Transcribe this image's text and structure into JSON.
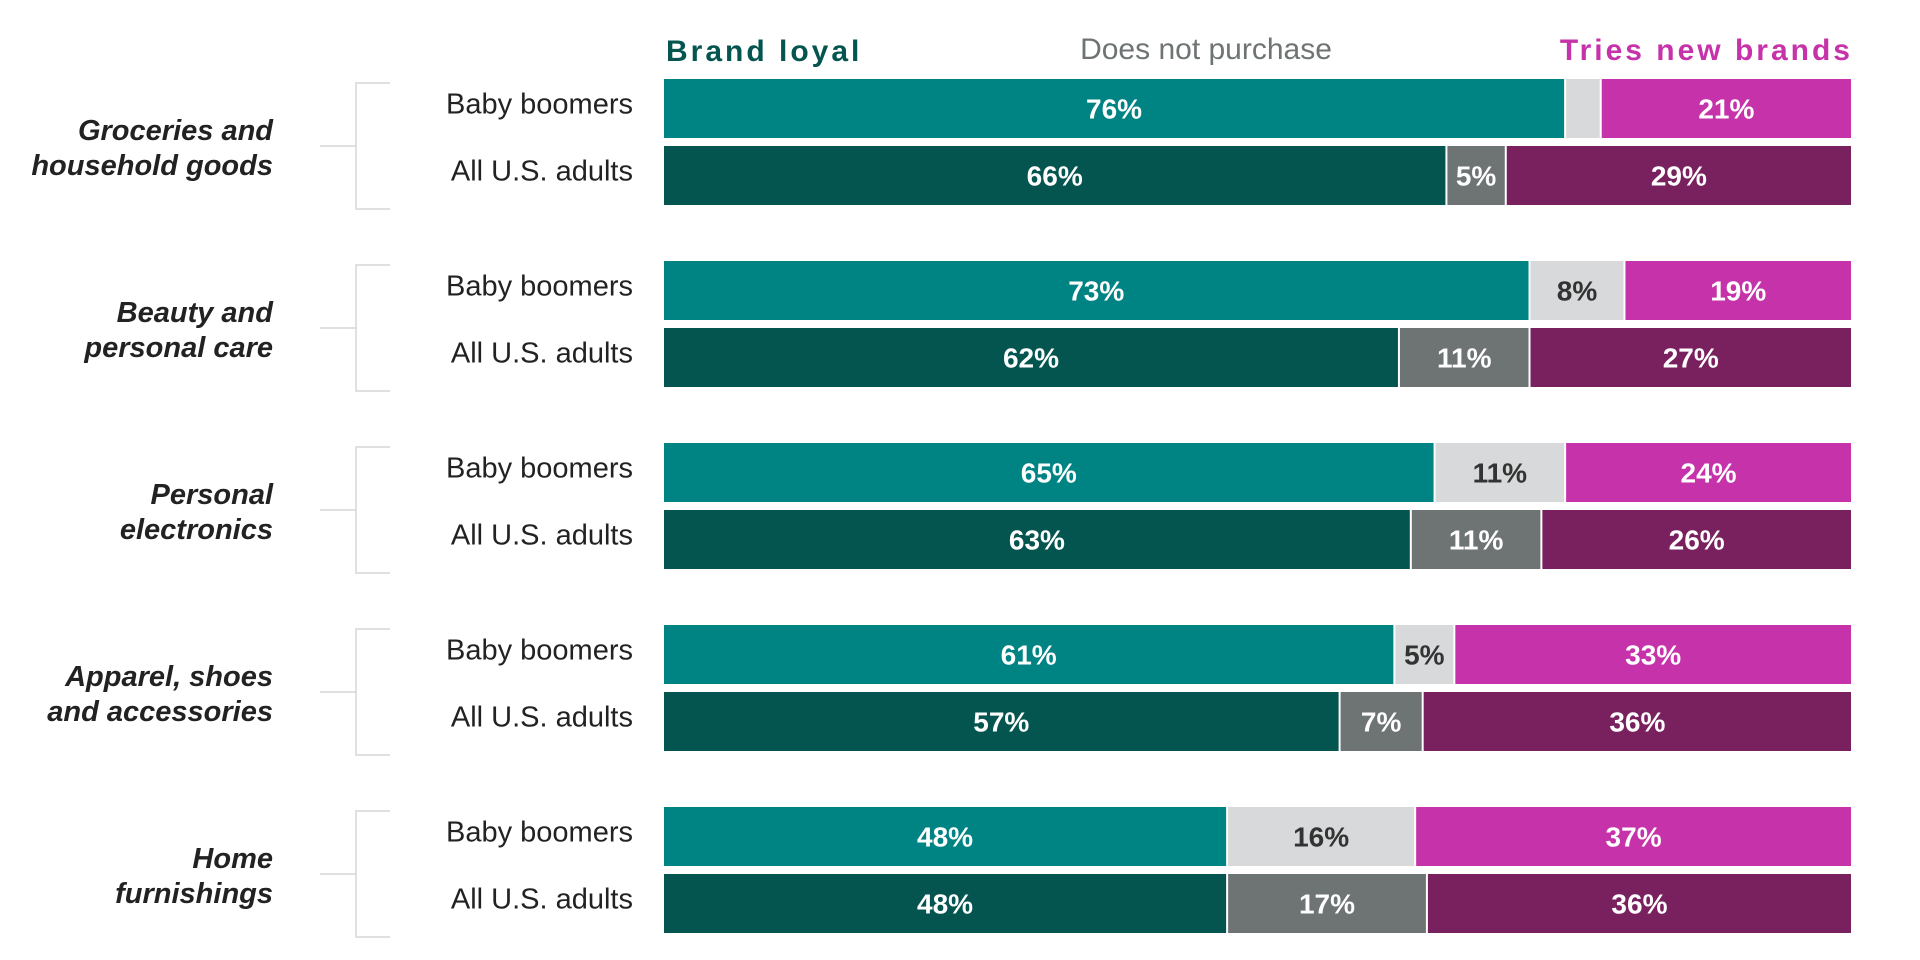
{
  "chart_data": {
    "type": "bar",
    "orientation": "horizontal",
    "stacked": true,
    "normalized_to": 100,
    "legend_placement": "top",
    "grid": false,
    "legend": [
      {
        "key": "brand_loyal",
        "label": "Brand loyal"
      },
      {
        "key": "does_not_purchase",
        "label": "Does not purchase"
      },
      {
        "key": "tries_new",
        "label": "Tries new brands"
      }
    ],
    "colors": {
      "boomers": {
        "brand_loyal": "#008383",
        "does_not_purchase": "#d7d9da",
        "tries_new": "#c632a9"
      },
      "all": {
        "brand_loyal": "#04554f",
        "does_not_purchase": "#6e7374",
        "tries_new": "#79205f"
      },
      "legend": {
        "brand_loyal": "#04554f",
        "does_not_purchase": "#6e7374",
        "tries_new": "#c632a9"
      },
      "label_light": "#ffffff",
      "label_dark": "#333333"
    },
    "groups": [
      {
        "category": [
          "Groceries and",
          "household goods"
        ],
        "rows": [
          {
            "label": "Baby boomers",
            "group": "boomers",
            "brand_loyal": 76,
            "does_not_purchase": 3,
            "tries_new": 21,
            "labels": [
              "76%",
              "",
              "21%"
            ]
          },
          {
            "label": "All U.S. adults",
            "group": "all",
            "brand_loyal": 66,
            "does_not_purchase": 5,
            "tries_new": 29,
            "labels": [
              "66%",
              "5%",
              "29%"
            ]
          }
        ]
      },
      {
        "category": [
          "Beauty and",
          "personal care"
        ],
        "rows": [
          {
            "label": "Baby boomers",
            "group": "boomers",
            "brand_loyal": 73,
            "does_not_purchase": 8,
            "tries_new": 19,
            "labels": [
              "73%",
              "8%",
              "19%"
            ]
          },
          {
            "label": "All U.S. adults",
            "group": "all",
            "brand_loyal": 62,
            "does_not_purchase": 11,
            "tries_new": 27,
            "labels": [
              "62%",
              "11%",
              "27%"
            ]
          }
        ]
      },
      {
        "category": [
          "Personal",
          "electronics"
        ],
        "rows": [
          {
            "label": "Baby boomers",
            "group": "boomers",
            "brand_loyal": 65,
            "does_not_purchase": 11,
            "tries_new": 24,
            "labels": [
              "65%",
              "11%",
              "24%"
            ]
          },
          {
            "label": "All U.S. adults",
            "group": "all",
            "brand_loyal": 63,
            "does_not_purchase": 11,
            "tries_new": 26,
            "labels": [
              "63%",
              "11%",
              "26%"
            ]
          }
        ]
      },
      {
        "category": [
          "Apparel, shoes",
          "and accessories"
        ],
        "rows": [
          {
            "label": "Baby boomers",
            "group": "boomers",
            "brand_loyal": 61,
            "does_not_purchase": 5,
            "tries_new": 33,
            "labels": [
              "61%",
              "5%",
              "33%"
            ]
          },
          {
            "label": "All U.S. adults",
            "group": "all",
            "brand_loyal": 57,
            "does_not_purchase": 7,
            "tries_new": 36,
            "labels": [
              "57%",
              "7%",
              "36%"
            ]
          }
        ]
      },
      {
        "category": [
          "Home",
          "furnishings"
        ],
        "rows": [
          {
            "label": "Baby boomers",
            "group": "boomers",
            "brand_loyal": 48,
            "does_not_purchase": 16,
            "tries_new": 37,
            "labels": [
              "48%",
              "16%",
              "37%"
            ]
          },
          {
            "label": "All U.S. adults",
            "group": "all",
            "brand_loyal": 48,
            "does_not_purchase": 17,
            "tries_new": 36,
            "labels": [
              "48%",
              "17%",
              "36%"
            ]
          }
        ]
      }
    ]
  }
}
